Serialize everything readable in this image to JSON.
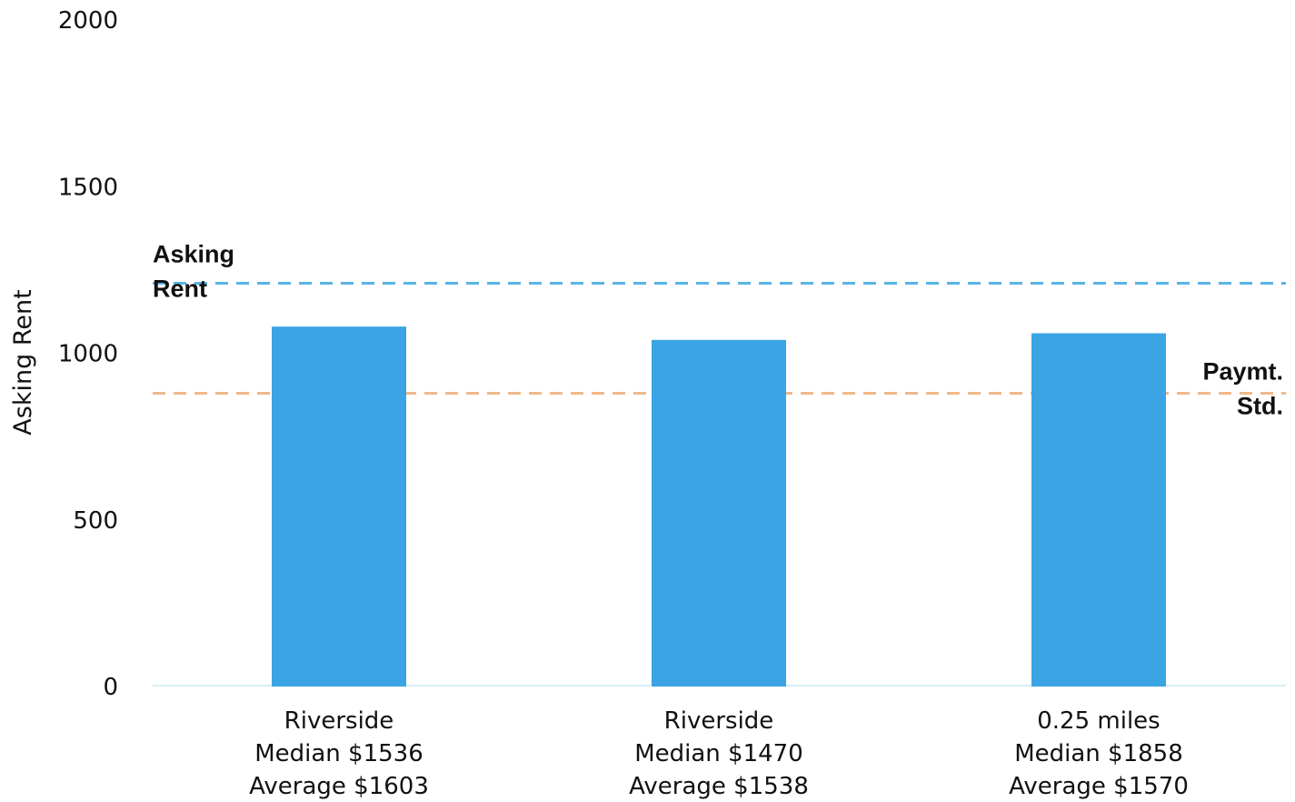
{
  "chart_data": {
    "type": "bar",
    "title": "",
    "xlabel": "",
    "ylabel": "Asking Rent",
    "ylim": [
      0,
      2000
    ],
    "yticks": [
      0,
      500,
      1000,
      1500,
      2000
    ],
    "grid": false,
    "categories": [
      [
        "Riverside",
        "Median $1536",
        "Average $1603"
      ],
      [
        "Riverside",
        "Median $1470",
        "Average $1538"
      ],
      [
        "0.25 miles",
        "Median $1858",
        "Average $1570"
      ]
    ],
    "values": [
      1080,
      1040,
      1060
    ],
    "bar_color": "#3aa4e4",
    "reference_lines": [
      {
        "label": [
          "Asking",
          "Rent"
        ],
        "value": 1210,
        "color": "#5ab4e6",
        "style": "dashed",
        "label_position": "left"
      },
      {
        "label": [
          "Paymt.",
          "Std."
        ],
        "value": 880,
        "color": "#f0b98a",
        "style": "dashed",
        "label_position": "right"
      }
    ]
  }
}
